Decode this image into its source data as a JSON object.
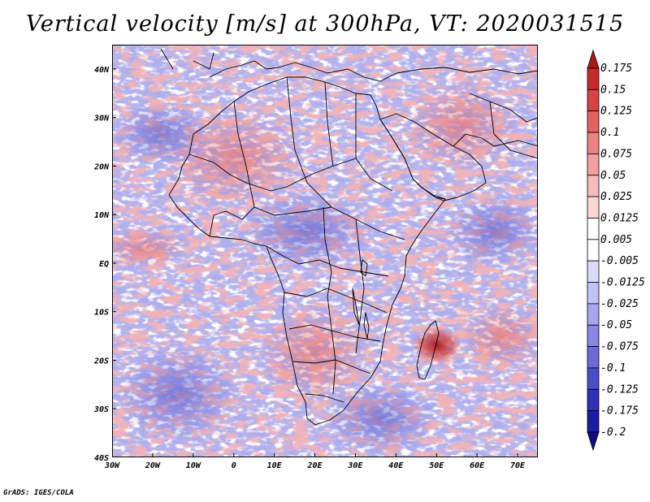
{
  "title": "Vertical velocity [m/s] at 300hPa, VT: 2020031515",
  "credit": "GrADS: IGES/COLA",
  "map": {
    "lon_range": [
      -30,
      75
    ],
    "lat_range": [
      -40,
      45
    ],
    "lat_ticks": [
      {
        "value": 40,
        "label": "40N"
      },
      {
        "value": 30,
        "label": "30N"
      },
      {
        "value": 20,
        "label": "20N"
      },
      {
        "value": 10,
        "label": "10N"
      },
      {
        "value": 0,
        "label": "EQ"
      },
      {
        "value": -10,
        "label": "10S"
      },
      {
        "value": -20,
        "label": "20S"
      },
      {
        "value": -30,
        "label": "30S"
      },
      {
        "value": -40,
        "label": "40S"
      }
    ],
    "lon_ticks": [
      {
        "value": -30,
        "label": "30W"
      },
      {
        "value": -20,
        "label": "20W"
      },
      {
        "value": -10,
        "label": "10W"
      },
      {
        "value": 0,
        "label": "0"
      },
      {
        "value": 10,
        "label": "10E"
      },
      {
        "value": 20,
        "label": "20E"
      },
      {
        "value": 30,
        "label": "30E"
      },
      {
        "value": 40,
        "label": "40E"
      },
      {
        "value": 50,
        "label": "50E"
      },
      {
        "value": 60,
        "label": "60E"
      },
      {
        "value": 70,
        "label": "70E"
      }
    ]
  },
  "colorbar": {
    "levels": [
      "0.175",
      "0.15",
      "0.125",
      "0.1",
      "0.075",
      "0.05",
      "0.025",
      "0.0125",
      "0.005",
      "-0.005",
      "-0.0125",
      "-0.025",
      "-0.05",
      "-0.075",
      "-0.1",
      "-0.125",
      "-0.175",
      "-0.2"
    ],
    "colors": [
      "#b01818",
      "#c62a2a",
      "#d84444",
      "#e46262",
      "#ec8282",
      "#f2a0a0",
      "#f6bcbc",
      "#fad8d8",
      "#ffffff",
      "#ffffff",
      "#dcdcfa",
      "#c2c2f4",
      "#a6a6ee",
      "#8888e4",
      "#6a6ad8",
      "#4c4ccc",
      "#3030b8",
      "#1c1ca0",
      "#100c80"
    ]
  }
}
